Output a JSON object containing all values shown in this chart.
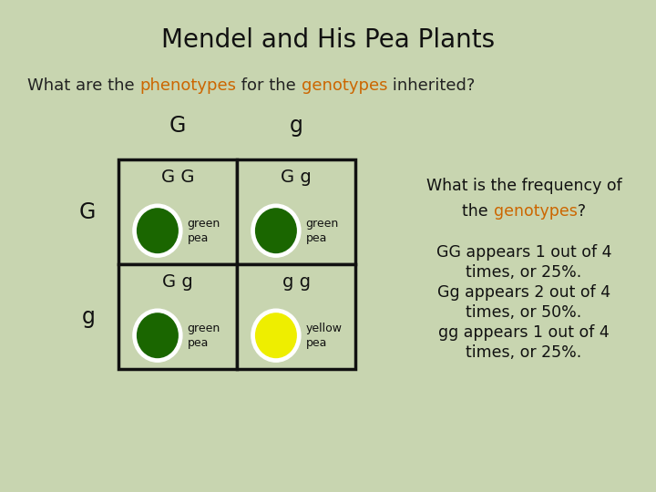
{
  "title": "Mendel and His Pea Plants",
  "background_color": "#c8d5b0",
  "grid_color": "#111111",
  "cell_bg": "#c8d5b0",
  "col_headers": [
    "G",
    "g"
  ],
  "row_headers": [
    "G",
    "g"
  ],
  "cells": [
    {
      "genotype": "G G",
      "pea_color": "#1a6600",
      "label": "green\npea",
      "text_color": "#111111"
    },
    {
      "genotype": "G g",
      "pea_color": "#1a6600",
      "label": "green\npea",
      "text_color": "#111111"
    },
    {
      "genotype": "G g",
      "pea_color": "#1a6600",
      "label": "green\npea",
      "text_color": "#111111"
    },
    {
      "genotype": "g g",
      "pea_color": "#eeee00",
      "label": "yellow\npea",
      "text_color": "#111111"
    }
  ],
  "subtitle": {
    "parts": [
      {
        "text": "What are the ",
        "color": "#222222"
      },
      {
        "text": "phenotypes",
        "color": "#cc6600"
      },
      {
        "text": " for the ",
        "color": "#222222"
      },
      {
        "text": "genotypes",
        "color": "#cc6600"
      },
      {
        "text": " inherited?",
        "color": "#222222"
      }
    ]
  },
  "freq_line1": "What is the frequency of",
  "freq_line2a": "the ",
  "freq_line2b": "genotypes",
  "freq_line2c": "?",
  "freq_lines": [
    "GG appears 1 out of 4",
    "times, or 25%.",
    "Gg appears 2 out of 4",
    "times, or 50%.",
    "gg appears 1 out of 4",
    "times, or 25%."
  ],
  "title_fontsize": 20,
  "subtitle_fontsize": 13,
  "header_fontsize": 17,
  "genotype_fontsize": 14,
  "pea_label_fontsize": 9,
  "freq_fontsize": 12.5
}
